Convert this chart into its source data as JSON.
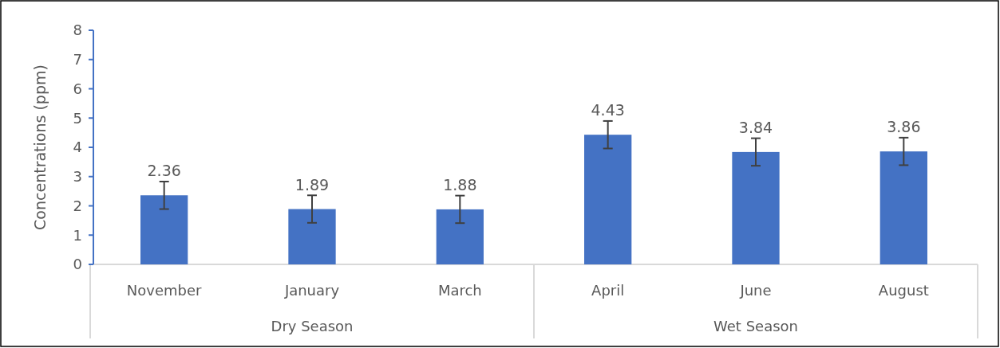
{
  "chart_data": {
    "type": "bar",
    "ylabel": "Concentrations (ppm)",
    "categories": [
      "November",
      "January",
      "March",
      "April",
      "June",
      "August"
    ],
    "values": [
      2.36,
      1.89,
      1.88,
      4.43,
      3.84,
      3.86
    ],
    "errors": [
      0.47,
      0.47,
      0.47,
      0.47,
      0.47,
      0.47
    ],
    "color": "#4472c4",
    "data_labels": true,
    "ylim": [
      0,
      8
    ],
    "yticks": [
      0,
      1,
      2,
      3,
      4,
      5,
      6,
      7,
      8
    ],
    "annotations": [
      "Dry Season",
      "Wet Season"
    ]
  }
}
